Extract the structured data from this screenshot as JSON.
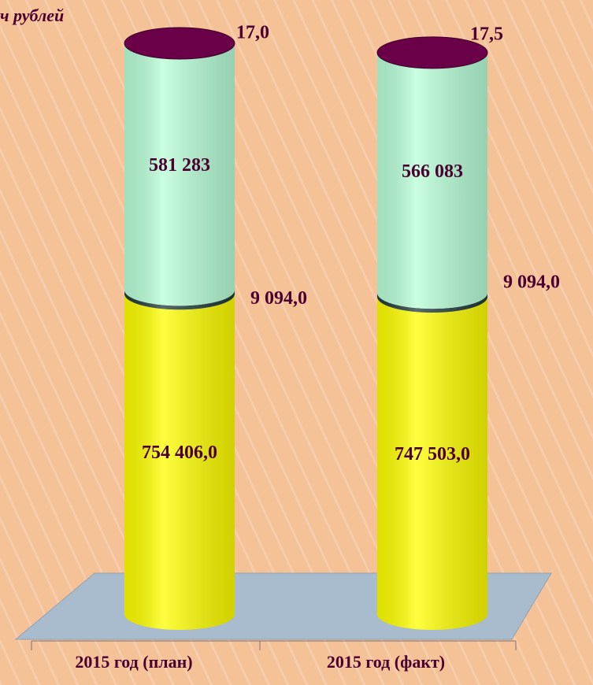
{
  "chart_data": {
    "type": "stacked_cylinder",
    "title": "ч рублей",
    "categories": [
      "2015 год (план)",
      "2015 год (факт)"
    ],
    "series": [
      {
        "color": "#ffff00",
        "values": [
          754406,
          747503
        ],
        "value_labels": [
          "754 406,0",
          "747 503,0"
        ]
      },
      {
        "color": "#1f3b3b",
        "values": [
          9094,
          9094
        ],
        "value_labels": [
          "9 094,0",
          "9 094,0"
        ]
      },
      {
        "color": "#b8ffd8",
        "values": [
          581283,
          566083
        ],
        "value_labels": [
          "581 283",
          "566 083"
        ]
      },
      {
        "color": "#6a0048",
        "values": [
          17,
          17.5
        ],
        "value_labels": [
          "17,0",
          "17,5"
        ]
      }
    ]
  }
}
